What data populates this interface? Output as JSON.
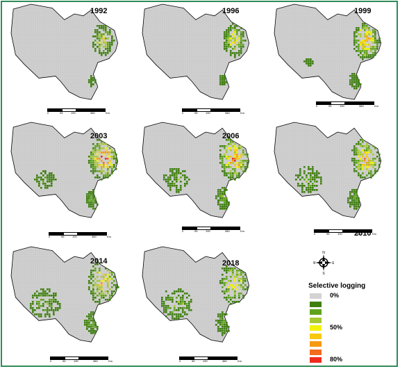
{
  "colors": {
    "border": "#2e8b57",
    "state_fill": "#d3d3d3",
    "state_grid": "#c2c2c2",
    "state_outline": "#000000"
  },
  "panels": [
    {
      "year": "1992",
      "scale": [
        "0",
        "95",
        "190",
        "380",
        "Km"
      ],
      "logging": [
        {
          "region": "east",
          "weight": 0.55,
          "spread": 0.8
        },
        {
          "region": "south",
          "weight": 0.15,
          "spread": 0.35
        }
      ]
    },
    {
      "year": "1996",
      "scale": [
        "0",
        "95",
        "190",
        "380",
        "Km"
      ],
      "logging": [
        {
          "region": "east",
          "weight": 0.6,
          "spread": 0.85
        },
        {
          "region": "south",
          "weight": 0.2,
          "spread": 0.4
        }
      ]
    },
    {
      "year": "1999",
      "scale": [
        "0",
        "95",
        "190",
        "380",
        "Km"
      ],
      "logging": [
        {
          "region": "east",
          "weight": 0.85,
          "spread": 1.0
        },
        {
          "region": "south",
          "weight": 0.3,
          "spread": 0.55
        },
        {
          "region": "west",
          "weight": 0.12,
          "spread": 0.25
        }
      ]
    },
    {
      "year": "2003",
      "scale": [
        "0",
        "95",
        "190",
        "380",
        "Km"
      ],
      "logging": [
        {
          "region": "east",
          "weight": 0.95,
          "spread": 1.1
        },
        {
          "region": "south",
          "weight": 0.45,
          "spread": 0.7
        },
        {
          "region": "west",
          "weight": 0.3,
          "spread": 0.55
        }
      ]
    },
    {
      "year": "2006",
      "scale": [
        "0",
        "95",
        "190",
        "380",
        "Km"
      ],
      "logging": [
        {
          "region": "east",
          "weight": 0.9,
          "spread": 1.15
        },
        {
          "region": "south",
          "weight": 0.5,
          "spread": 0.8
        },
        {
          "region": "west",
          "weight": 0.4,
          "spread": 0.7
        }
      ]
    },
    {
      "year": "2010",
      "scale": [
        "0",
        "95",
        "190",
        "380",
        "Km"
      ],
      "logging": [
        {
          "region": "east",
          "weight": 0.8,
          "spread": 1.1
        },
        {
          "region": "south",
          "weight": 0.45,
          "spread": 0.75
        },
        {
          "region": "west",
          "weight": 0.45,
          "spread": 0.75
        }
      ]
    },
    {
      "year": "2014",
      "scale": [
        "0",
        "95",
        "190",
        "380",
        "Km"
      ],
      "logging": [
        {
          "region": "east",
          "weight": 0.7,
          "spread": 1.15
        },
        {
          "region": "south",
          "weight": 0.45,
          "spread": 0.8
        },
        {
          "region": "west",
          "weight": 0.55,
          "spread": 0.85
        }
      ]
    },
    {
      "year": "2018",
      "scale": [
        "0",
        "95",
        "190",
        "380",
        "Km"
      ],
      "logging": [
        {
          "region": "east",
          "weight": 0.65,
          "spread": 1.1
        },
        {
          "region": "south",
          "weight": 0.4,
          "spread": 0.8
        },
        {
          "region": "west",
          "weight": 0.55,
          "spread": 0.9
        }
      ]
    }
  ],
  "north_arrow": {
    "n": "N",
    "s": "S",
    "e": "E",
    "w": "W"
  },
  "legend": {
    "title": "Selective logging",
    "colors": [
      "#d3d3d3",
      "#3f7f10",
      "#5fa21c",
      "#a8c832",
      "#f2f20a",
      "#f7c90c",
      "#f79a12",
      "#f36b1c",
      "#ee2b1d"
    ],
    "labels": [
      "0%",
      "",
      "",
      "",
      "50%",
      "",
      "",
      "",
      "80%"
    ]
  }
}
